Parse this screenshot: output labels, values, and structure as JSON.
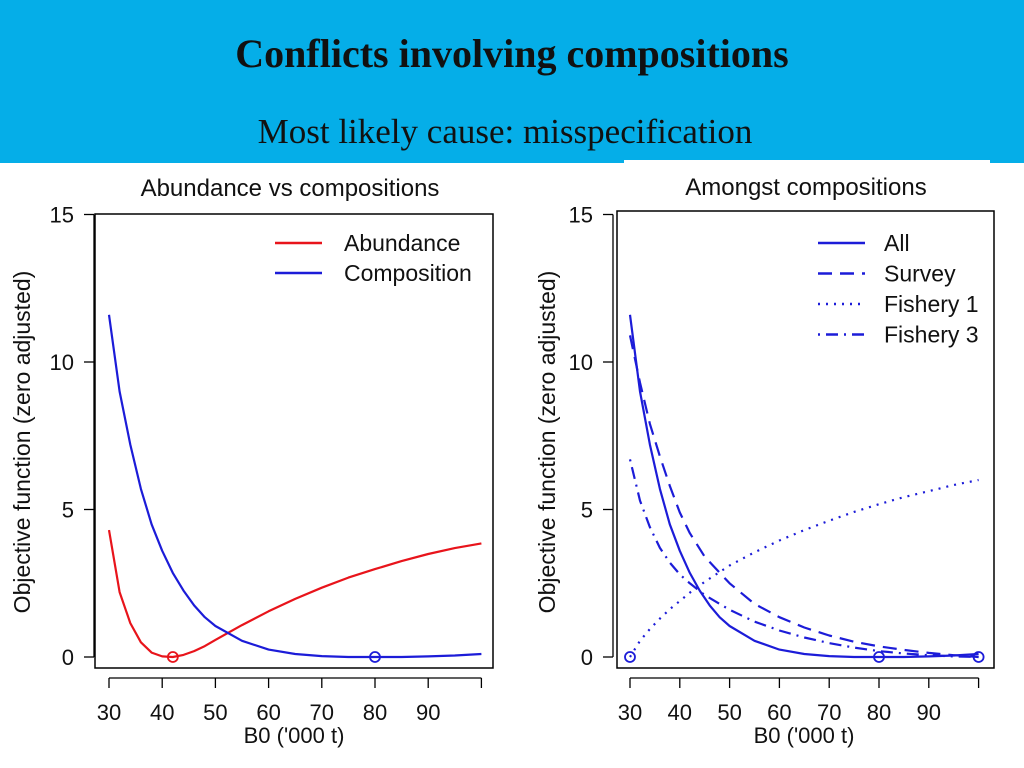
{
  "slide": {
    "title": "Conflicts involving compositions",
    "subtitle": "Most likely cause: misspecification"
  },
  "colors": {
    "header_bg": "#05aee8",
    "red": "#e8141b",
    "blue": "#1c1cd8"
  },
  "chart_data": [
    {
      "type": "line",
      "title": "Abundance vs compositions",
      "xlabel": "B0 ('000 t)",
      "ylabel": "Objective function (zero adjusted)",
      "xlim": [
        30,
        100
      ],
      "ylim": [
        0,
        15
      ],
      "xticks": [
        "30",
        "40",
        "50",
        "60",
        "70",
        "80",
        "90"
      ],
      "yticks": [
        "0",
        "5",
        "10",
        "15"
      ],
      "legend_position": "top-right",
      "series": [
        {
          "name": "Abundance",
          "color": "#e8141b",
          "dash": "solid",
          "x": [
            30,
            32,
            34,
            36,
            38,
            40,
            42,
            44,
            46,
            48,
            50,
            55,
            60,
            65,
            70,
            75,
            80,
            85,
            90,
            95,
            100
          ],
          "y": [
            4.3,
            2.2,
            1.15,
            0.5,
            0.15,
            0.02,
            0.0,
            0.07,
            0.2,
            0.37,
            0.58,
            1.08,
            1.55,
            1.97,
            2.35,
            2.69,
            2.98,
            3.25,
            3.49,
            3.69,
            3.85
          ],
          "min_marker": [
            42,
            0
          ]
        },
        {
          "name": "Composition",
          "color": "#1c1cd8",
          "dash": "solid",
          "x": [
            30,
            32,
            34,
            36,
            38,
            40,
            42,
            44,
            46,
            48,
            50,
            55,
            60,
            65,
            70,
            75,
            80,
            85,
            90,
            95,
            100
          ],
          "y": [
            11.6,
            9.0,
            7.2,
            5.7,
            4.5,
            3.6,
            2.85,
            2.25,
            1.75,
            1.35,
            1.05,
            0.55,
            0.25,
            0.1,
            0.03,
            0.0,
            0.0,
            0.0,
            0.02,
            0.05,
            0.1
          ],
          "min_marker": [
            80,
            0
          ]
        }
      ]
    },
    {
      "type": "line",
      "title": "Amongst compositions",
      "xlabel": "B0 ('000 t)",
      "ylabel": "Objective function (zero adjusted)",
      "xlim": [
        30,
        100
      ],
      "ylim": [
        0,
        15
      ],
      "xticks": [
        "30",
        "40",
        "50",
        "60",
        "70",
        "80",
        "90"
      ],
      "yticks": [
        "0",
        "5",
        "10",
        "15"
      ],
      "legend_position": "top-right",
      "series": [
        {
          "name": "All",
          "color": "#1c1cd8",
          "dash": "solid",
          "x": [
            30,
            32,
            34,
            36,
            38,
            40,
            42,
            44,
            46,
            48,
            50,
            55,
            60,
            65,
            70,
            75,
            80,
            85,
            90,
            95,
            100
          ],
          "y": [
            11.6,
            9.0,
            7.2,
            5.7,
            4.5,
            3.6,
            2.85,
            2.25,
            1.75,
            1.35,
            1.05,
            0.55,
            0.25,
            0.1,
            0.03,
            0.0,
            0.0,
            0.0,
            0.02,
            0.05,
            0.1
          ],
          "min_marker": [
            80,
            0
          ]
        },
        {
          "name": "Survey",
          "color": "#1c1cd8",
          "dash": "dashed",
          "x": [
            30,
            32,
            34,
            36,
            38,
            40,
            42,
            45,
            50,
            55,
            60,
            65,
            70,
            75,
            80,
            85,
            90,
            95,
            100
          ],
          "y": [
            10.9,
            9.3,
            7.9,
            6.8,
            5.8,
            4.9,
            4.2,
            3.4,
            2.5,
            1.8,
            1.35,
            1.0,
            0.73,
            0.52,
            0.36,
            0.24,
            0.14,
            0.06,
            0.0
          ],
          "min_marker": [
            100,
            0
          ]
        },
        {
          "name": "Fishery 1",
          "color": "#1c1cd8",
          "dash": "dotted",
          "x": [
            30,
            32,
            34,
            36,
            38,
            40,
            42,
            45,
            50,
            55,
            60,
            65,
            70,
            75,
            80,
            85,
            90,
            95,
            100
          ],
          "y": [
            0.0,
            0.55,
            0.95,
            1.3,
            1.62,
            1.9,
            2.18,
            2.55,
            3.1,
            3.55,
            3.95,
            4.3,
            4.62,
            4.92,
            5.18,
            5.42,
            5.62,
            5.83,
            6.0
          ],
          "min_marker": [
            30,
            0
          ]
        },
        {
          "name": "Fishery 3",
          "color": "#1c1cd8",
          "dash": "dotdash",
          "x": [
            30,
            32,
            34,
            36,
            38,
            40,
            42,
            45,
            50,
            55,
            60,
            65,
            70,
            75,
            80,
            85,
            90,
            95,
            100
          ],
          "y": [
            6.7,
            5.3,
            4.4,
            3.7,
            3.2,
            2.8,
            2.5,
            2.1,
            1.6,
            1.2,
            0.9,
            0.66,
            0.47,
            0.32,
            0.2,
            0.12,
            0.06,
            0.02,
            0.0
          ]
        }
      ]
    }
  ]
}
